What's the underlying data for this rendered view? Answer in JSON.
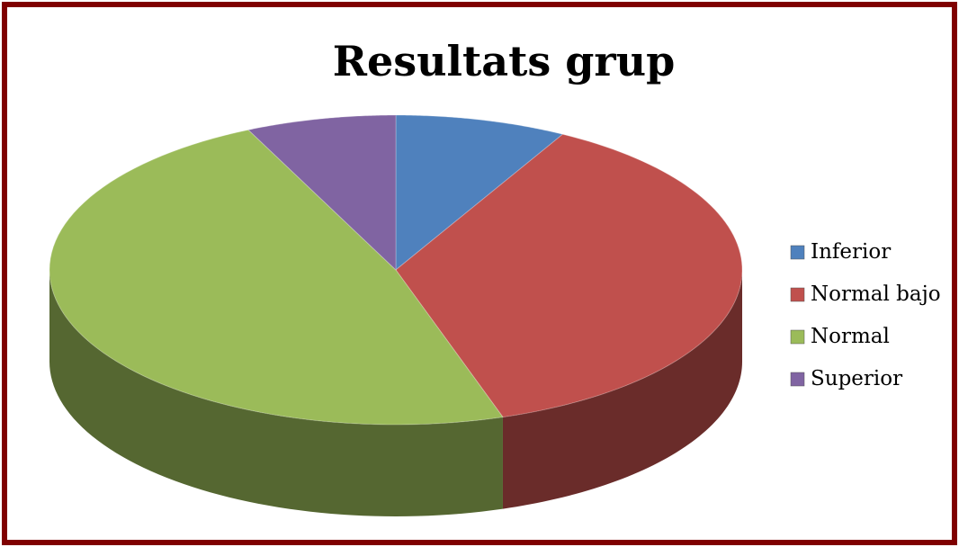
{
  "chart_data": {
    "type": "pie",
    "title": "Resultats grup",
    "categories": [
      "Inferior",
      "Normal bajo",
      "Normal",
      "Superior"
    ],
    "values": [
      8,
      37,
      48,
      7
    ],
    "colors": [
      "#4f81bd",
      "#c0504d",
      "#9bbb59",
      "#8064a2"
    ],
    "legend": "right"
  }
}
